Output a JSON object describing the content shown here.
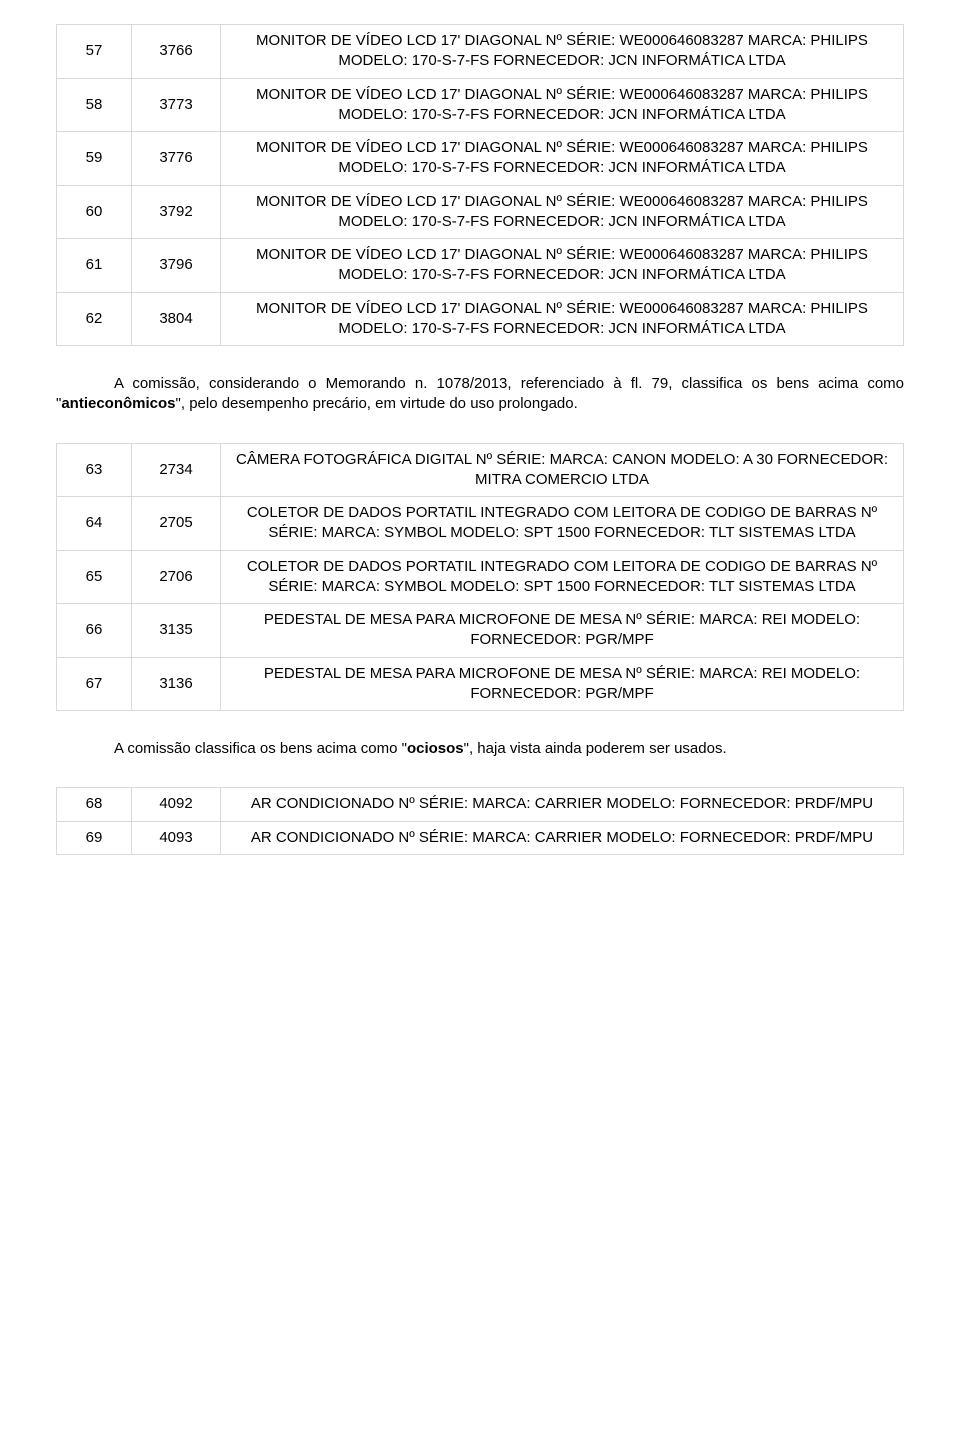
{
  "table1": {
    "rows": [
      {
        "idx": "57",
        "code": "3766",
        "desc": "MONITOR DE VÍDEO LCD 17' DIAGONAL Nº SÉRIE: WE000646083287 MARCA: PHILIPS MODELO: 170-S-7-FS FORNECEDOR: JCN INFORMÁTICA LTDA"
      },
      {
        "idx": "58",
        "code": "3773",
        "desc": "MONITOR DE VÍDEO LCD 17' DIAGONAL Nº SÉRIE: WE000646083287 MARCA: PHILIPS MODELO: 170-S-7-FS FORNECEDOR: JCN INFORMÁTICA LTDA"
      },
      {
        "idx": "59",
        "code": "3776",
        "desc": "MONITOR DE VÍDEO LCD 17' DIAGONAL Nº SÉRIE: WE000646083287 MARCA: PHILIPS MODELO: 170-S-7-FS FORNECEDOR: JCN INFORMÁTICA LTDA"
      },
      {
        "idx": "60",
        "code": "3792",
        "desc": "MONITOR DE VÍDEO LCD 17' DIAGONAL Nº SÉRIE: WE000646083287 MARCA: PHILIPS MODELO: 170-S-7-FS FORNECEDOR: JCN INFORMÁTICA LTDA"
      },
      {
        "idx": "61",
        "code": "3796",
        "desc": "MONITOR DE VÍDEO LCD 17' DIAGONAL Nº SÉRIE: WE000646083287 MARCA: PHILIPS MODELO: 170-S-7-FS FORNECEDOR: JCN INFORMÁTICA LTDA"
      },
      {
        "idx": "62",
        "code": "3804",
        "desc": "MONITOR DE VÍDEO LCD 17' DIAGONAL Nº SÉRIE: WE000646083287 MARCA: PHILIPS MODELO: 170-S-7-FS FORNECEDOR: JCN INFORMÁTICA LTDA"
      }
    ]
  },
  "para1": {
    "before_bold": "A comissão, considerando o Memorando n. 1078/2013, referenciado à fl. 79, classifica os bens acima como \"",
    "bold": "antieconômicos",
    "after_bold": "\", pelo desempenho precário, em virtude do uso prolongado."
  },
  "table2": {
    "rows": [
      {
        "idx": "63",
        "code": "2734",
        "desc": "CÂMERA FOTOGRÁFICA DIGITAL Nº SÉRIE:  MARCA: CANON MODELO: A 30 FORNECEDOR: MITRA COMERCIO LTDA"
      },
      {
        "idx": "64",
        "code": "2705",
        "desc": "COLETOR DE DADOS PORTATIL INTEGRADO COM LEITORA DE CODIGO DE BARRAS Nº SÉRIE:  MARCA: SYMBOL MODELO: SPT 1500 FORNECEDOR: TLT SISTEMAS LTDA"
      },
      {
        "idx": "65",
        "code": "2706",
        "desc": "COLETOR DE DADOS PORTATIL INTEGRADO COM LEITORA DE CODIGO DE BARRAS Nº SÉRIE:  MARCA: SYMBOL MODELO: SPT 1500 FORNECEDOR: TLT SISTEMAS LTDA"
      },
      {
        "idx": "66",
        "code": "3135",
        "desc": "PEDESTAL DE MESA PARA MICROFONE DE MESA Nº SÉRIE: MARCA: REI MODELO:  FORNECEDOR: PGR/MPF"
      },
      {
        "idx": "67",
        "code": "3136",
        "desc": "PEDESTAL DE MESA PARA MICROFONE DE MESA Nº SÉRIE: MARCA: REI MODELO:  FORNECEDOR: PGR/MPF"
      }
    ]
  },
  "para2": {
    "before_bold": "A comissão classifica os bens acima como \"",
    "bold": "ociosos",
    "after_bold": "\", haja vista ainda poderem ser usados."
  },
  "table3": {
    "rows": [
      {
        "idx": "68",
        "code": "4092",
        "desc": "AR CONDICIONADO  Nº SÉRIE:  MARCA: CARRIER MODELO: FORNECEDOR: PRDF/MPU"
      },
      {
        "idx": "69",
        "code": "4093",
        "desc": "AR CONDICIONADO  Nº SÉRIE:  MARCA: CARRIER MODELO: FORNECEDOR: PRDF/MPU"
      }
    ]
  }
}
